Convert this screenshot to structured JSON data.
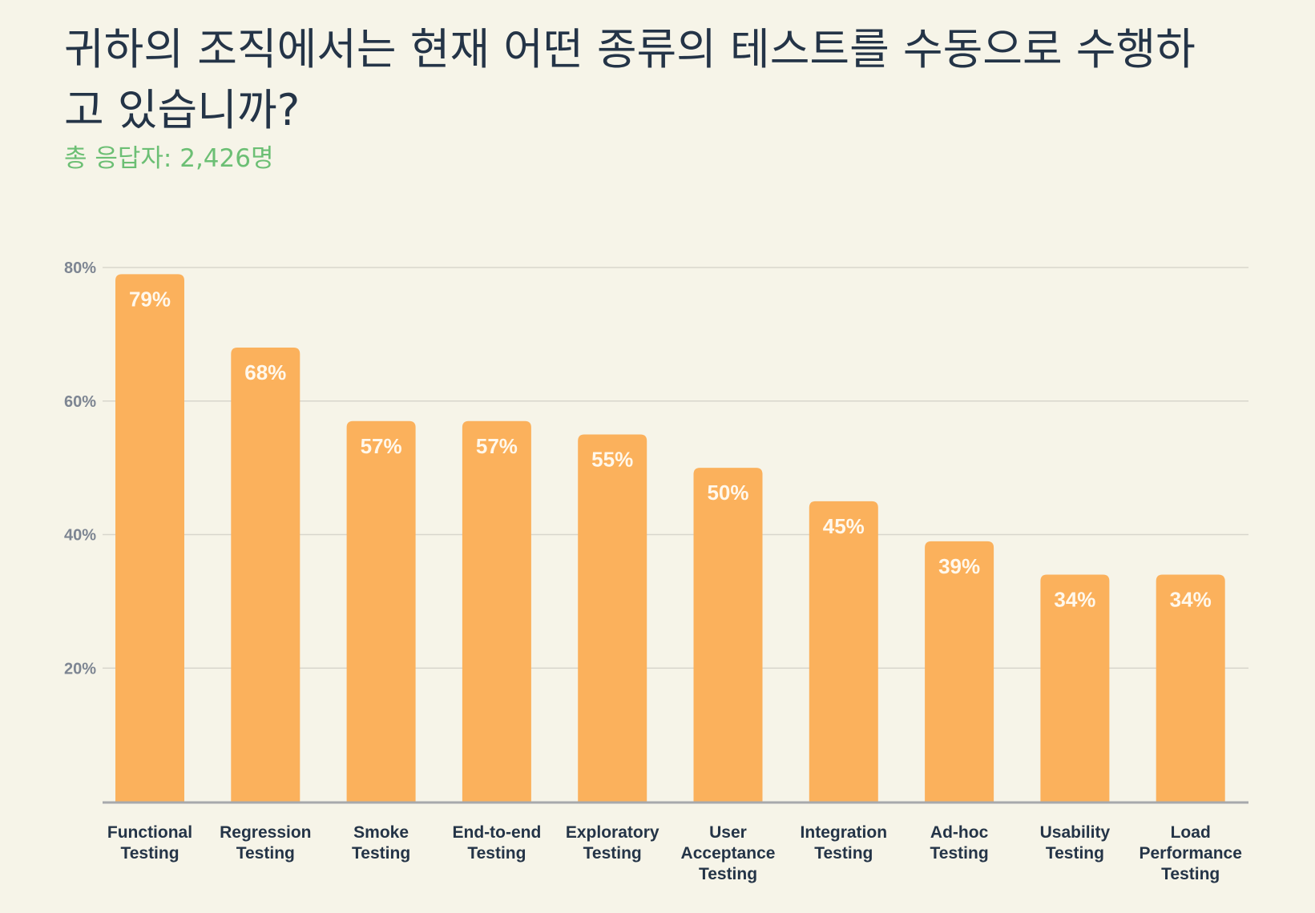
{
  "chart_data": {
    "type": "bar",
    "title": "귀하의 조직에서는 현재 어떤 종류의 테스트를 수동으로 수행하고 있습니까?",
    "subtitle": "총 응답자: 2,426명",
    "categories": [
      [
        "Functional",
        "Testing"
      ],
      [
        "Regression",
        "Testing"
      ],
      [
        "Smoke",
        "Testing"
      ],
      [
        "End-to-end",
        "Testing"
      ],
      [
        "Exploratory",
        "Testing"
      ],
      [
        "User",
        "Acceptance",
        "Testing"
      ],
      [
        "Integration",
        "Testing"
      ],
      [
        "Ad-hoc",
        "Testing"
      ],
      [
        "Usability",
        "Testing"
      ],
      [
        "Load",
        "Performance",
        "Testing"
      ]
    ],
    "values": [
      79,
      68,
      57,
      57,
      55,
      50,
      45,
      39,
      34,
      34
    ],
    "value_labels": [
      "79%",
      "68%",
      "57%",
      "57%",
      "55%",
      "50%",
      "45%",
      "39%",
      "34%",
      "34%"
    ],
    "y_ticks": [
      20,
      40,
      60,
      80
    ],
    "y_tick_labels": [
      "20%",
      "40%",
      "60%",
      "80%"
    ],
    "ylim": [
      0,
      80
    ],
    "grid": true,
    "bar_color": "#fbb15c",
    "grid_color": "#d8d6cc",
    "axis_color": "#a7a9ac"
  }
}
